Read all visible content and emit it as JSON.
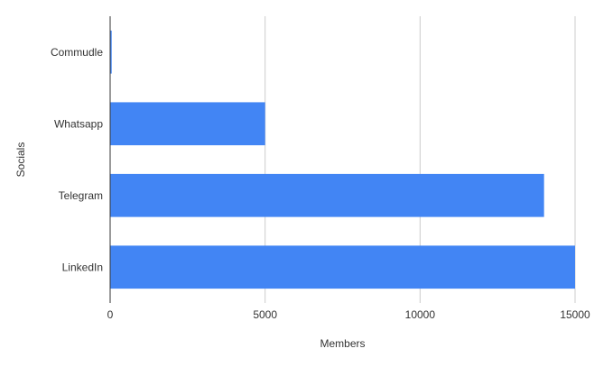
{
  "chart_data": {
    "type": "bar",
    "orientation": "horizontal",
    "categories": [
      "Commudle",
      "Whatsapp",
      "Telegram",
      "LinkedIn"
    ],
    "series": [
      {
        "values": [
          50,
          5000,
          14000,
          15000
        ]
      }
    ],
    "xlabel": "Members",
    "ylabel": "Socials",
    "xlim": [
      0,
      15000
    ],
    "xticks": [
      "0",
      "5000",
      "10000",
      "15000"
    ],
    "grid": "vertical",
    "legend": "none",
    "colors": {
      "bar": "#4285f4",
      "grid": "#cccccc",
      "axis": "#333333"
    }
  }
}
